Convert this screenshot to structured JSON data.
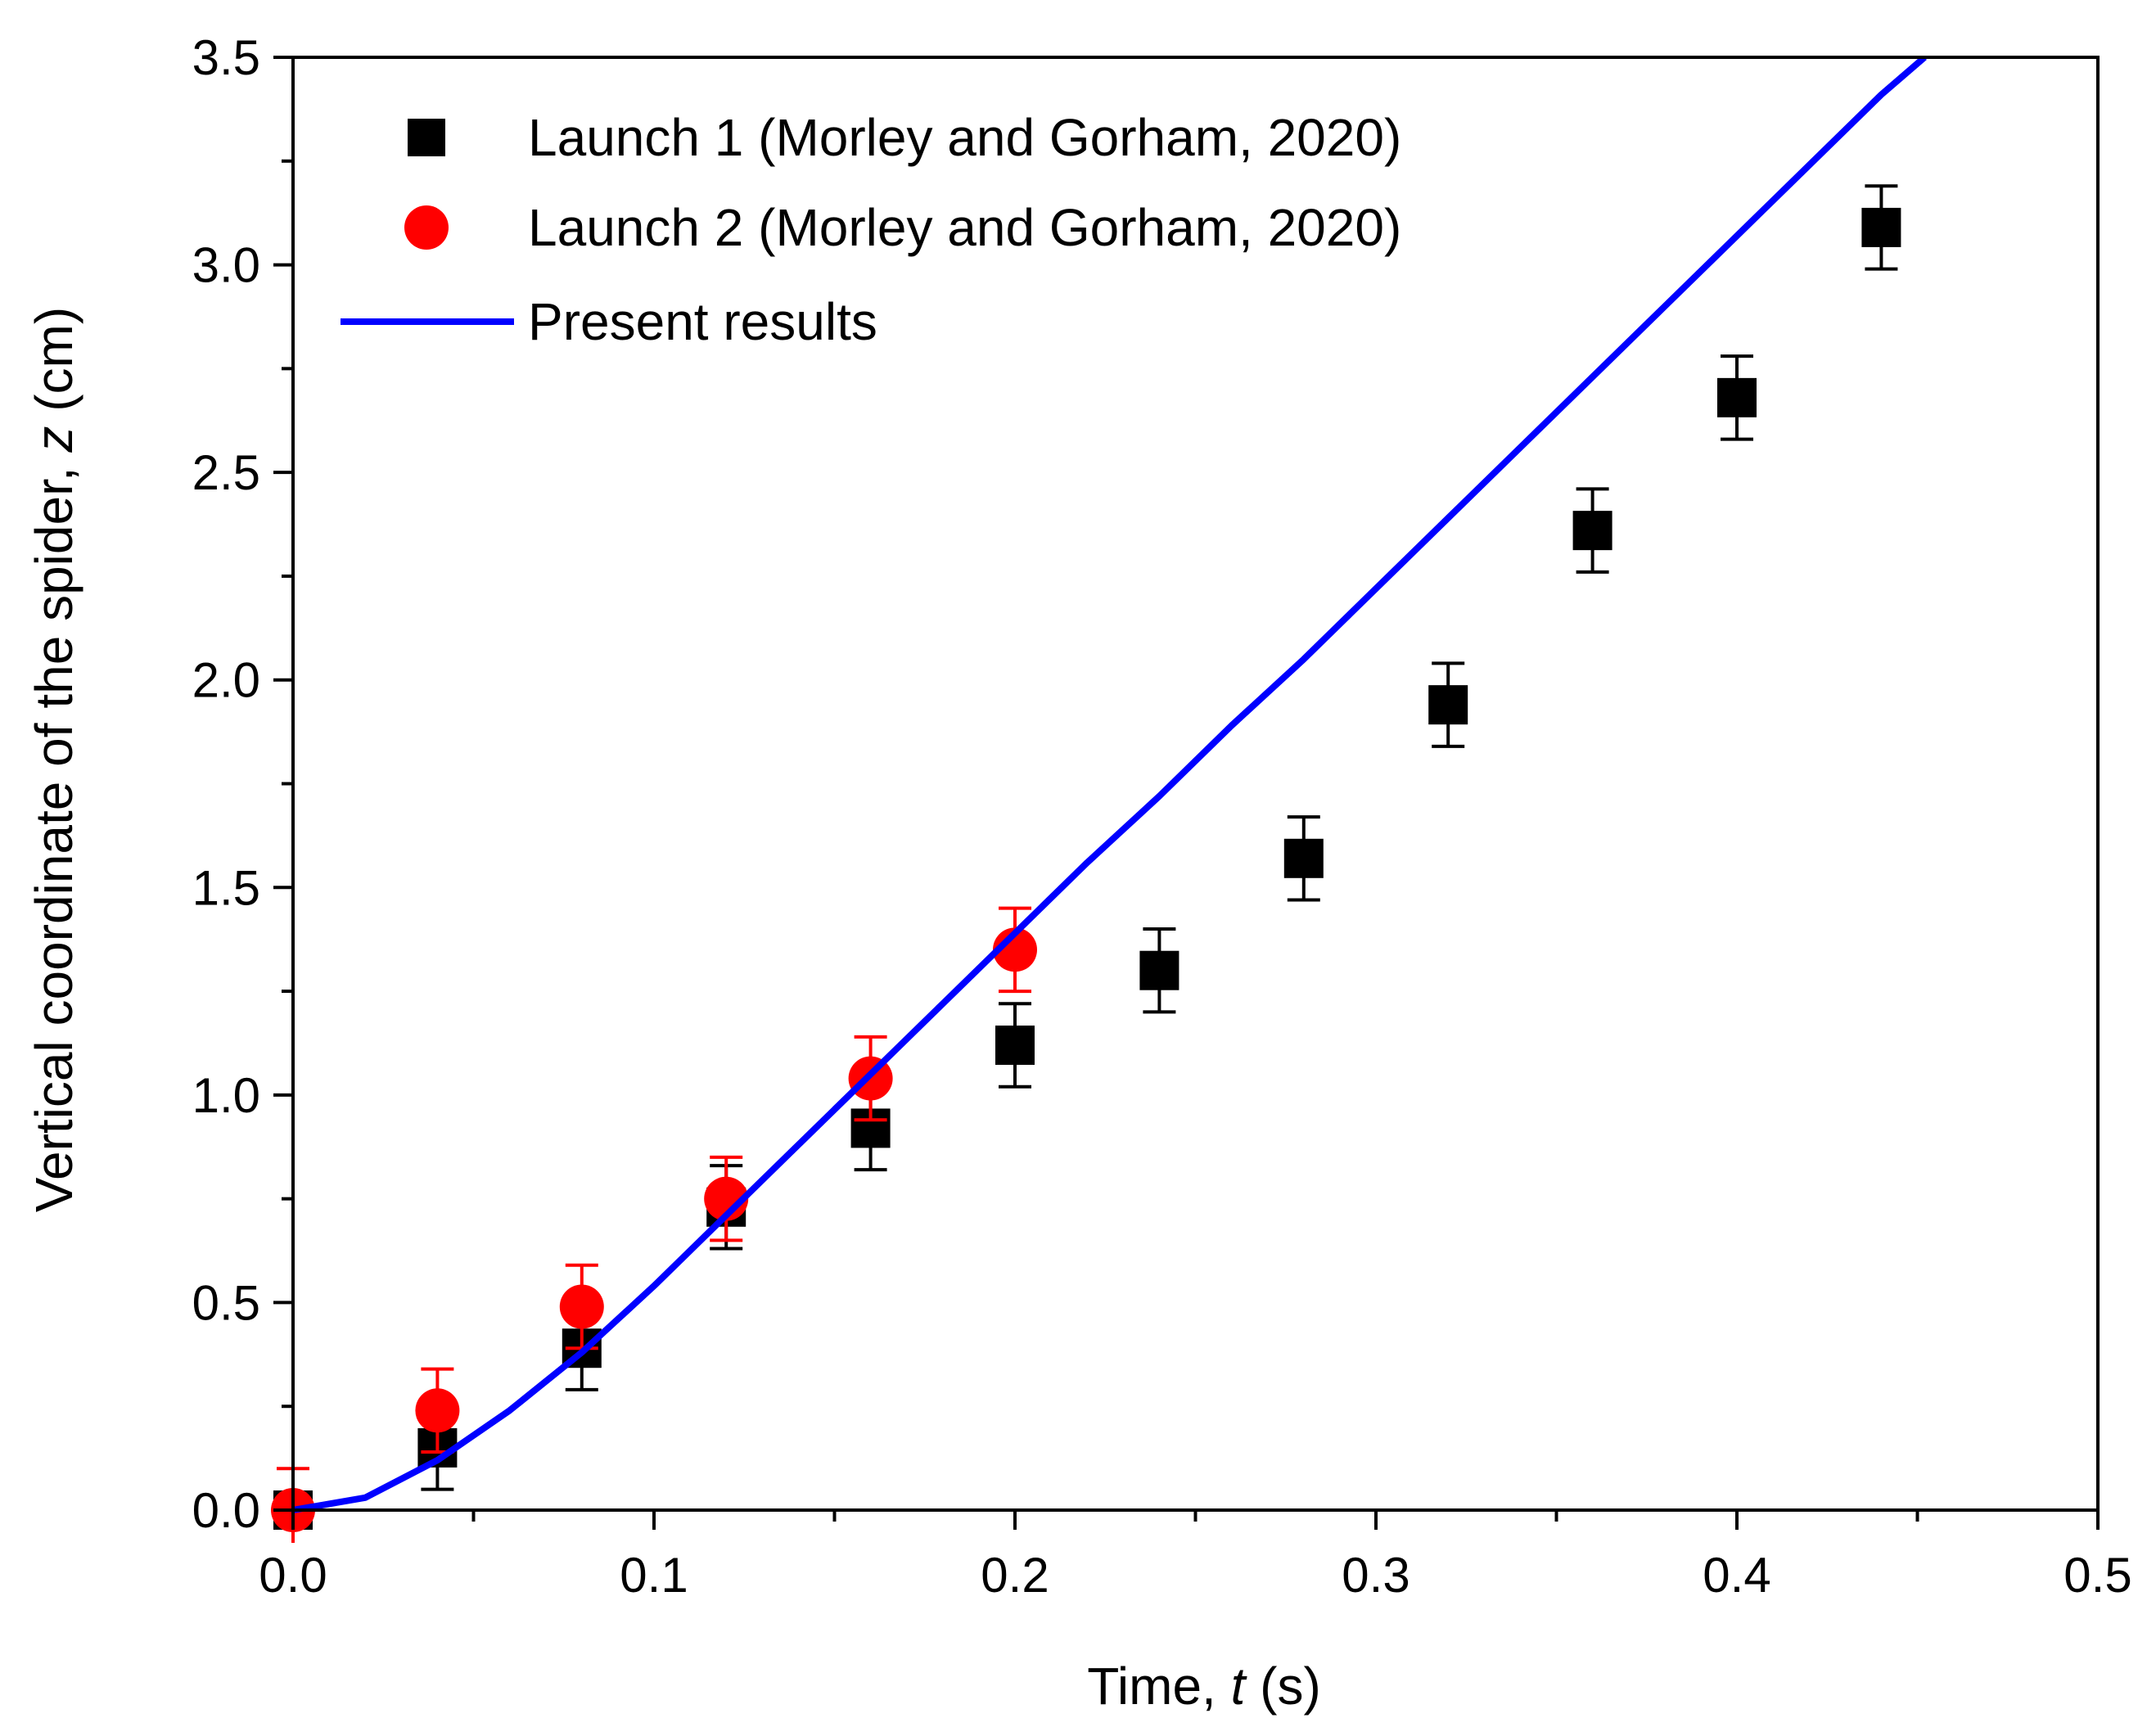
{
  "chart_data": {
    "type": "scatter",
    "title": "",
    "xlabel_prefix": "Time, ",
    "xlabel_var": "t",
    "xlabel_suffix": " (s)",
    "ylabel_prefix": "Vertical coordinate of the spider, ",
    "ylabel_var": "z",
    "ylabel_suffix": " (cm)",
    "xlim": [
      0,
      0.5
    ],
    "ylim": [
      0,
      3.5
    ],
    "x_ticks": [
      0.0,
      0.1,
      0.2,
      0.3,
      0.4,
      0.5
    ],
    "x_tick_labels": [
      "0.0",
      "0.1",
      "0.2",
      "0.3",
      "0.4",
      "0.5"
    ],
    "x_minor_ticks": [
      0.05,
      0.15,
      0.25,
      0.35,
      0.45
    ],
    "y_ticks": [
      0.0,
      0.5,
      1.0,
      1.5,
      2.0,
      2.5,
      3.0,
      3.5
    ],
    "y_tick_labels": [
      "0.0",
      "0.5",
      "1.0",
      "1.5",
      "2.0",
      "2.5",
      "3.0",
      "3.5"
    ],
    "y_minor_ticks": [
      0.25,
      0.75,
      1.25,
      1.75,
      2.25,
      2.75,
      3.25
    ],
    "grid": false,
    "legend_position": "top-left",
    "series": [
      {
        "name": "Launch 1 (Morley and Gorham, 2020)",
        "marker": "square",
        "color": "#000000",
        "x": [
          0.0,
          0.04,
          0.08,
          0.12,
          0.16,
          0.2,
          0.24,
          0.28,
          0.32,
          0.36,
          0.4,
          0.44
        ],
        "y": [
          0.0,
          0.15,
          0.39,
          0.73,
          0.92,
          1.12,
          1.3,
          1.57,
          1.94,
          2.36,
          2.68,
          3.09
        ],
        "err": [
          0.04,
          0.1,
          0.1,
          0.1,
          0.1,
          0.1,
          0.1,
          0.1,
          0.1,
          0.1,
          0.1,
          0.1
        ]
      },
      {
        "name": "Launch 2 (Morley and Gorham, 2020)",
        "marker": "circle",
        "color": "#ff0000",
        "x": [
          0.0,
          0.04,
          0.08,
          0.12,
          0.16,
          0.2
        ],
        "y": [
          0.0,
          0.24,
          0.49,
          0.75,
          1.04,
          1.35
        ],
        "err": [
          0.1,
          0.1,
          0.1,
          0.1,
          0.1,
          0.1
        ]
      },
      {
        "name": "Present results",
        "type": "line",
        "color": "#0000ff",
        "x": [
          0.0,
          0.02,
          0.04,
          0.06,
          0.08,
          0.1,
          0.12,
          0.14,
          0.16,
          0.18,
          0.2,
          0.22,
          0.24,
          0.26,
          0.28,
          0.3,
          0.32,
          0.34,
          0.36,
          0.38,
          0.4,
          0.42,
          0.44,
          0.452
        ],
        "y": [
          0.0,
          0.03,
          0.12,
          0.24,
          0.38,
          0.54,
          0.71,
          0.88,
          1.05,
          1.22,
          1.39,
          1.56,
          1.72,
          1.89,
          2.05,
          2.22,
          2.39,
          2.56,
          2.73,
          2.9,
          3.07,
          3.24,
          3.41,
          3.5
        ]
      }
    ]
  }
}
